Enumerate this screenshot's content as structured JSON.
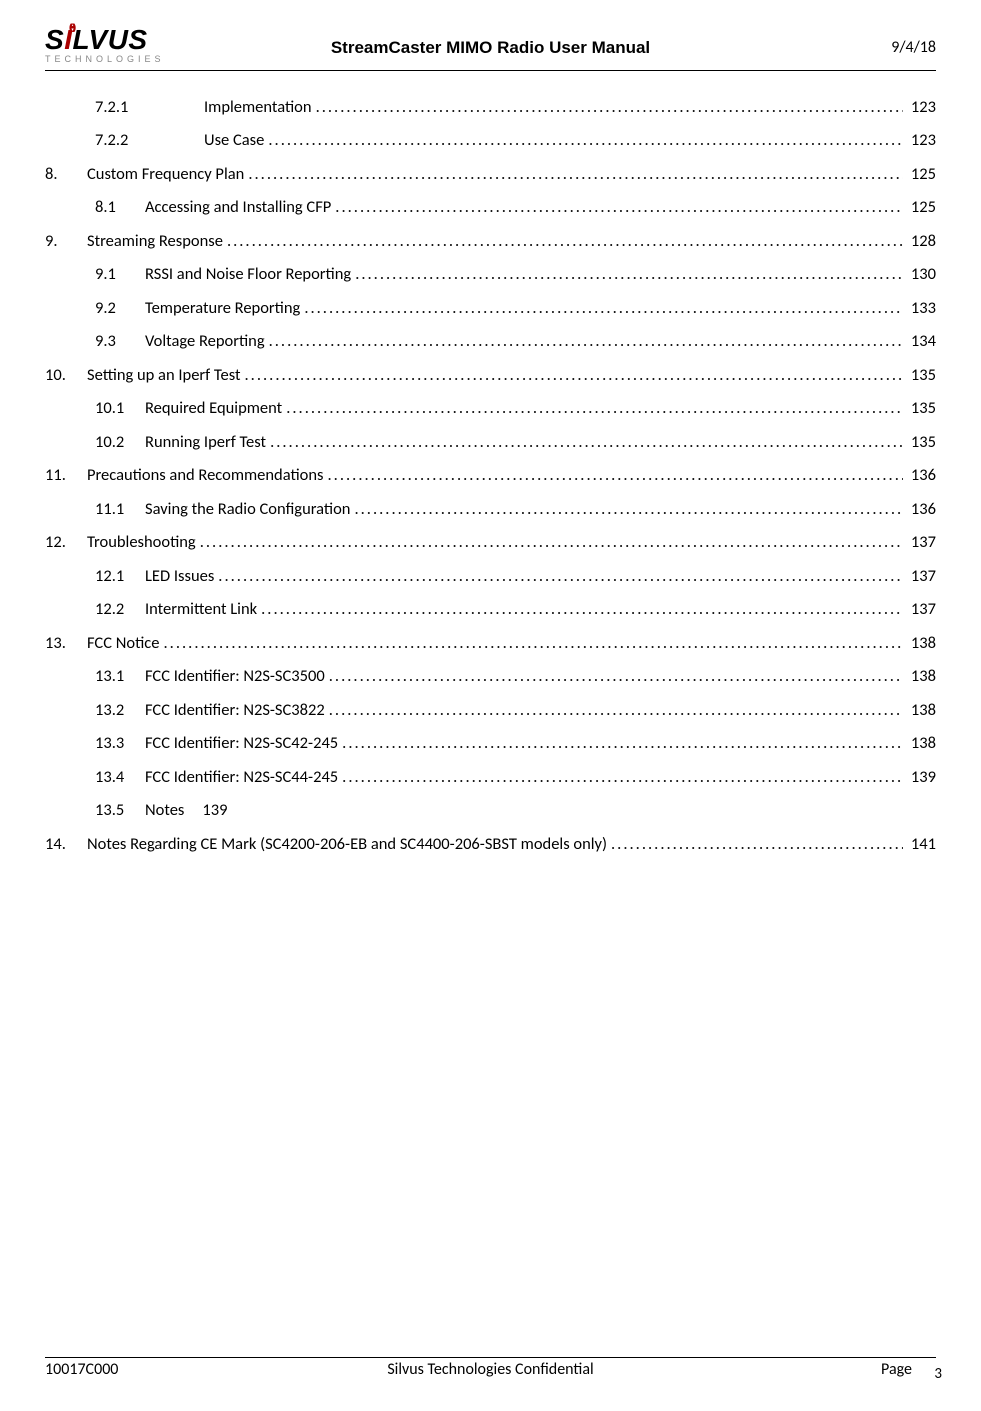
{
  "header": {
    "logo_main_s": "S",
    "logo_main_i": "I",
    "logo_main_rest": "LVUS",
    "logo_dots": "((•))",
    "logo_sub": "TECHNOLOGIES",
    "title": "StreamCaster MIMO Radio User Manual",
    "date": "9/4/18"
  },
  "toc": [
    {
      "level": 3,
      "num": "7.2.1",
      "title": "Implementation",
      "page": "123",
      "leader": true
    },
    {
      "level": 3,
      "num": "7.2.2",
      "title": "Use Case",
      "page": "123",
      "leader": true
    },
    {
      "level": 1,
      "num": "8.",
      "title": "Custom Frequency Plan",
      "page": "125",
      "leader": true
    },
    {
      "level": 2,
      "num": "8.1",
      "title": "Accessing and Installing CFP",
      "page": "125",
      "leader": true
    },
    {
      "level": 1,
      "num": "9.",
      "title": "Streaming Response",
      "page": "128",
      "leader": true
    },
    {
      "level": 2,
      "num": "9.1",
      "title": "RSSI and Noise Floor Reporting",
      "page": "130",
      "leader": true
    },
    {
      "level": 2,
      "num": "9.2",
      "title": "Temperature Reporting",
      "page": "133",
      "leader": true
    },
    {
      "level": 2,
      "num": "9.3",
      "title": "Voltage Reporting",
      "page": "134",
      "leader": true
    },
    {
      "level": 1,
      "num": "10.",
      "title": "Setting up an Iperf Test",
      "page": "135",
      "leader": true
    },
    {
      "level": 2,
      "num": "10.1",
      "title": "Required Equipment",
      "page": "135",
      "leader": true
    },
    {
      "level": 2,
      "num": "10.2",
      "title": "Running Iperf Test",
      "page": "135",
      "leader": true
    },
    {
      "level": 1,
      "num": "11.",
      "title": "Precautions and Recommendations",
      "page": "136",
      "leader": true
    },
    {
      "level": 2,
      "num": "11.1",
      "title": "Saving the Radio Configuration",
      "page": "136",
      "leader": true
    },
    {
      "level": 1,
      "num": "12.",
      "title": "Troubleshooting",
      "page": "137",
      "leader": true
    },
    {
      "level": 2,
      "num": "12.1",
      "title": "LED Issues",
      "page": "137",
      "leader": true
    },
    {
      "level": 2,
      "num": "12.2",
      "title": "Intermittent Link",
      "page": "137",
      "leader": true
    },
    {
      "level": 1,
      "num": "13.",
      "title": "FCC Notice",
      "page": "138",
      "leader": true
    },
    {
      "level": 2,
      "num": "13.1",
      "title": "FCC Identifier: N2S-SC3500",
      "page": "138",
      "leader": true
    },
    {
      "level": 2,
      "num": "13.2",
      "title": "FCC Identifier: N2S-SC3822",
      "page": "138",
      "leader": true
    },
    {
      "level": 2,
      "num": "13.3",
      "title": "FCC Identifier: N2S-SC42-245",
      "page": "138",
      "leader": true
    },
    {
      "level": 2,
      "num": "13.4",
      "title": "FCC Identifier: N2S-SC44-245",
      "page": "139",
      "leader": true
    },
    {
      "level": 2,
      "num": "13.5",
      "title": "Notes",
      "page": "139",
      "leader": false
    },
    {
      "level": 1,
      "num": "14.",
      "title": "Notes Regarding CE Mark (SC4200-206-EB and SC4400-206-SBST models only)",
      "page": "141",
      "leader": true
    }
  ],
  "footer": {
    "left": "10017C000",
    "center": "Silvus Technologies Confidential",
    "right_label": "Page",
    "page_num": "3"
  },
  "colors": {
    "text": "#000000",
    "bg": "#ffffff",
    "accent": "#a00000",
    "muted": "#888888"
  },
  "fonts": {
    "body": "Calibri",
    "header_title": "Arial Bold",
    "body_size_pt": 12,
    "header_title_size_pt": 13
  }
}
